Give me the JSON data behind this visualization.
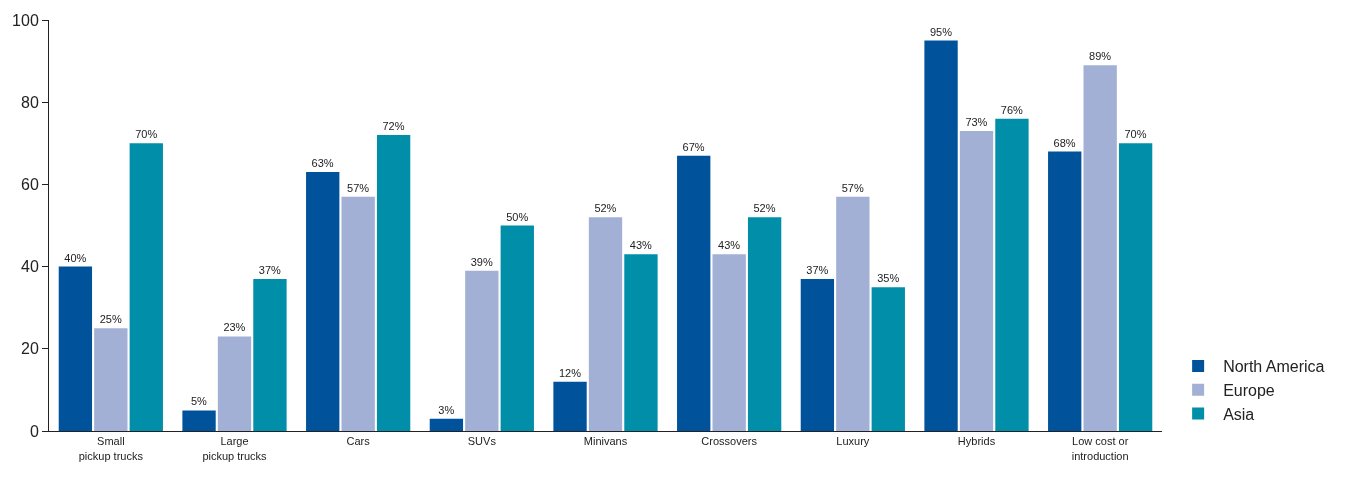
{
  "chart_data": {
    "type": "bar",
    "categories": [
      "Small\npickup trucks",
      "Large\npickup trucks",
      "Cars",
      "SUVs",
      "Minivans",
      "Crossovers",
      "Luxury",
      "Hybrids",
      "Low cost or\nintroduction"
    ],
    "series": [
      {
        "name": "North America",
        "color": "#00529b",
        "values": [
          40,
          5,
          63,
          3,
          12,
          67,
          37,
          95,
          68
        ],
        "value_labels": [
          "40%",
          "5%",
          "63%",
          "3%",
          "12%",
          "67%",
          "37%",
          "95%",
          "68%"
        ]
      },
      {
        "name": "Europe",
        "color": "#a3b0d5",
        "values": [
          25,
          23,
          57,
          39,
          52,
          43,
          57,
          73,
          89
        ],
        "value_labels": [
          "25%",
          "23%",
          "57%",
          "39%",
          "52%",
          "43%",
          "57%",
          "73%",
          "89%"
        ]
      },
      {
        "name": "Asia",
        "color": "#008ea8",
        "values": [
          70,
          37,
          72,
          50,
          43,
          52,
          35,
          76,
          70
        ],
        "value_labels": [
          "70%",
          "37%",
          "72%",
          "50%",
          "43%",
          "52%",
          "35%",
          "76%",
          "70%"
        ]
      }
    ],
    "ylim": [
      0,
      100
    ],
    "yticks": [
      0,
      20,
      40,
      60,
      80,
      100
    ],
    "legend": "bottom right"
  }
}
